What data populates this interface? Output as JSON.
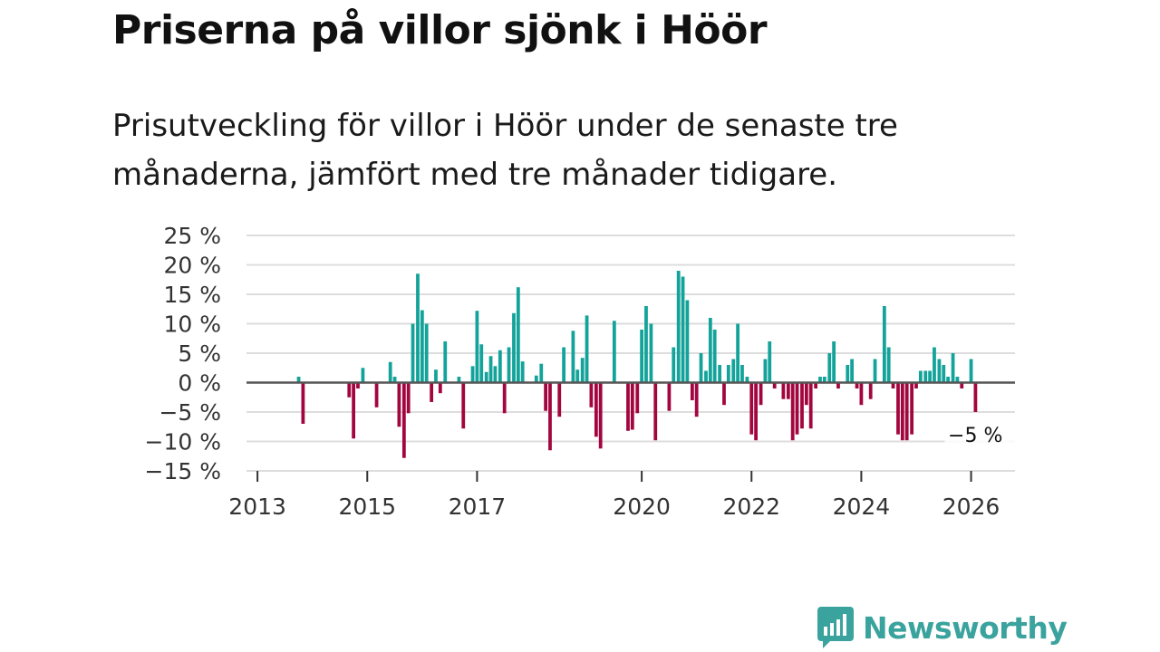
{
  "header": {
    "title": "Priserna på villor sjönk i Höör",
    "subtitle": "Prisutveckling för villor i Höör under de senaste tre månaderna, jämfört med tre månader tidigare."
  },
  "brand": {
    "name": "Newsworthy",
    "logo_icon": "bar-chart-speech-bubble-icon"
  },
  "colors": {
    "positive": "#13a39a",
    "negative": "#a3063f",
    "grid": "#dddddd",
    "zero": "#555555",
    "brand": "#3aa39d"
  },
  "chart_data": {
    "type": "bar",
    "title": "Priserna på villor sjönk i Höör",
    "xlabel": "",
    "ylabel": "",
    "ylim": [
      -15,
      25
    ],
    "xlim": [
      2012.8,
      2026.8
    ],
    "y_ticks": [
      25,
      20,
      15,
      10,
      5,
      0,
      -5,
      -10,
      -15
    ],
    "y_tick_labels": [
      "25 %",
      "20 %",
      "15 %",
      "10 %",
      "5 %",
      "0 %",
      "−5 %",
      "−10 %",
      "−15 %"
    ],
    "x_ticks": [
      2013,
      2015,
      2017,
      2020,
      2022,
      2024,
      2026
    ],
    "x_tick_labels": [
      "2013",
      "2015",
      "2017",
      "2020",
      "2022",
      "2024",
      "2026"
    ],
    "end_label": "−5 %",
    "series": [
      {
        "name": "Prisutveckling",
        "x": [
          2013.75,
          2013.83,
          2014.67,
          2014.75,
          2014.83,
          2014.92,
          2015.17,
          2015.42,
          2015.5,
          2015.58,
          2015.67,
          2015.75,
          2015.83,
          2015.92,
          2016.0,
          2016.08,
          2016.17,
          2016.25,
          2016.33,
          2016.42,
          2016.5,
          2016.67,
          2016.75,
          2016.92,
          2017.0,
          2017.08,
          2017.17,
          2017.25,
          2017.33,
          2017.42,
          2017.5,
          2017.58,
          2017.67,
          2017.75,
          2017.83,
          2017.92,
          2018.08,
          2018.17,
          2018.25,
          2018.33,
          2018.5,
          2018.58,
          2018.75,
          2018.83,
          2018.92,
          2019.0,
          2019.08,
          2019.17,
          2019.25,
          2019.5,
          2019.75,
          2019.83,
          2019.92,
          2020.0,
          2020.08,
          2020.17,
          2020.25,
          2020.33,
          2020.5,
          2020.58,
          2020.67,
          2020.75,
          2020.83,
          2020.92,
          2021.0,
          2021.08,
          2021.17,
          2021.25,
          2021.33,
          2021.42,
          2021.5,
          2021.58,
          2021.67,
          2021.75,
          2021.83,
          2021.92,
          2022.0,
          2022.08,
          2022.17,
          2022.25,
          2022.33,
          2022.42,
          2022.5,
          2022.58,
          2022.67,
          2022.75,
          2022.83,
          2022.92,
          2023.0,
          2023.08,
          2023.17,
          2023.25,
          2023.33,
          2023.42,
          2023.5,
          2023.58,
          2023.67,
          2023.75,
          2023.83,
          2023.92,
          2024.0,
          2024.08,
          2024.17,
          2024.25,
          2024.33,
          2024.42,
          2024.5,
          2024.58,
          2024.67,
          2024.75,
          2024.83,
          2024.92,
          2025.0,
          2025.08,
          2025.17,
          2025.25,
          2025.33,
          2025.42,
          2025.5,
          2025.58,
          2025.67,
          2025.75,
          2025.83,
          2026.0,
          2026.08
        ],
        "values": [
          1,
          -7,
          -2.5,
          -9.5,
          -1,
          2.5,
          -4.2,
          3.5,
          1,
          -7.5,
          -12.8,
          -5.2,
          10,
          18.5,
          12.3,
          10,
          -3.3,
          2.2,
          -1.8,
          7,
          0,
          1,
          -7.8,
          2.8,
          12.2,
          6.5,
          1.8,
          4.5,
          2.8,
          5.5,
          -5.2,
          6,
          11.8,
          16.2,
          3.6,
          0,
          1.2,
          3.2,
          -4.8,
          -11.5,
          -5.8,
          6,
          8.8,
          2.2,
          4.2,
          11.4,
          -4.2,
          -9.2,
          -11.2,
          10.5,
          -8.2,
          -8,
          -5.2,
          9,
          13,
          10,
          -9.8,
          0,
          -4.8,
          6,
          19,
          18,
          14,
          -3,
          -5.8,
          5,
          2,
          11,
          9,
          3,
          -3.8,
          3,
          4,
          10,
          3,
          1,
          -8.8,
          -9.8,
          -3.8,
          4,
          7,
          -1,
          0,
          -2.8,
          -2.8,
          -9.8,
          -8.8,
          -7.8,
          -3.8,
          -7.8,
          -1,
          1,
          1,
          5,
          7,
          -1,
          0,
          3,
          4,
          -1,
          -3.8,
          0,
          -2.8,
          4,
          0,
          13,
          6,
          -1,
          -8.8,
          -9.8,
          -9.8,
          -8.8,
          -1,
          2,
          2,
          2,
          6,
          4,
          3,
          1,
          5,
          1,
          -1,
          4,
          -5
        ]
      }
    ]
  }
}
